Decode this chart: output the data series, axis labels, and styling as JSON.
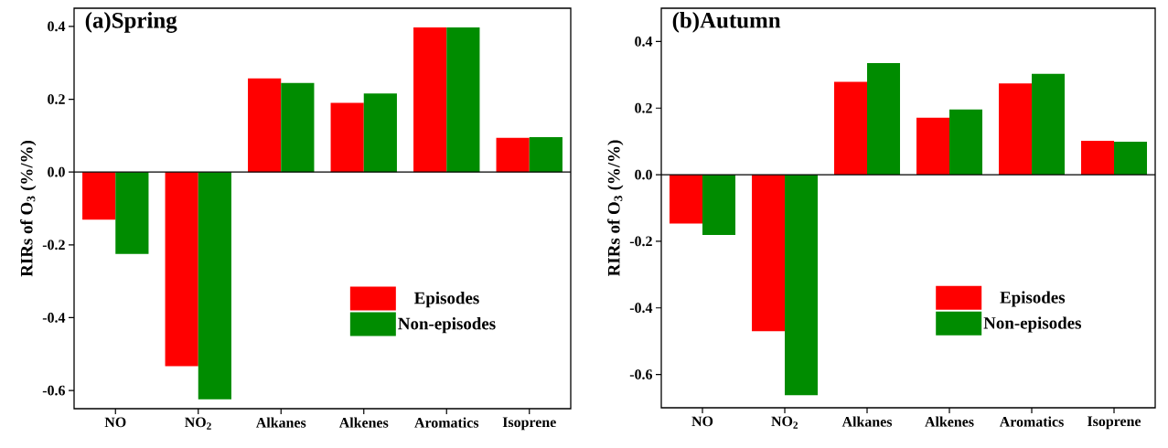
{
  "chart_data": [
    {
      "type": "bar",
      "title": "(a)Spring",
      "ylabel": "RIRs of O$_{3}$ (%/%)",
      "categories": [
        "NO",
        "NO$_{2}$",
        "Alkanes",
        "Alkenes",
        "Aromatics",
        "Isoprene"
      ],
      "series": [
        {
          "name": "Episodes",
          "color": "#ff0000",
          "values": [
            -0.131,
            -0.533,
            0.257,
            0.19,
            0.397,
            0.094
          ]
        },
        {
          "name": "Non-episodes",
          "color": "#008c00",
          "values": [
            -0.225,
            -0.624,
            0.245,
            0.216,
            0.397,
            0.096
          ]
        }
      ],
      "ylim": [
        -0.65,
        0.45
      ],
      "yticks": [
        -0.6,
        -0.4,
        -0.2,
        {
          "value": 0,
          "label": "0.0"
        },
        0.2,
        0.4
      ],
      "legend": "right"
    },
    {
      "type": "bar",
      "title": "(b)Autumn",
      "ylabel": "RIRs of O$_{3}$ (%/%)",
      "categories": [
        "NO",
        "NO$_{2}$",
        "Alkanes",
        "Alkenes",
        "Aromatics",
        "Isoprene"
      ],
      "series": [
        {
          "name": "Episodes",
          "color": "#ff0000",
          "values": [
            -0.147,
            -0.47,
            0.279,
            0.171,
            0.274,
            0.102
          ]
        },
        {
          "name": "Non-episodes",
          "color": "#008c00",
          "values": [
            -0.181,
            -0.662,
            0.335,
            0.196,
            0.303,
            0.099
          ]
        }
      ],
      "ylim": [
        -0.7,
        0.5
      ],
      "yticks": [
        -0.6,
        -0.4,
        -0.2,
        {
          "value": 0,
          "label": "0.0"
        },
        0.2,
        0.4
      ],
      "legend": "right"
    }
  ]
}
